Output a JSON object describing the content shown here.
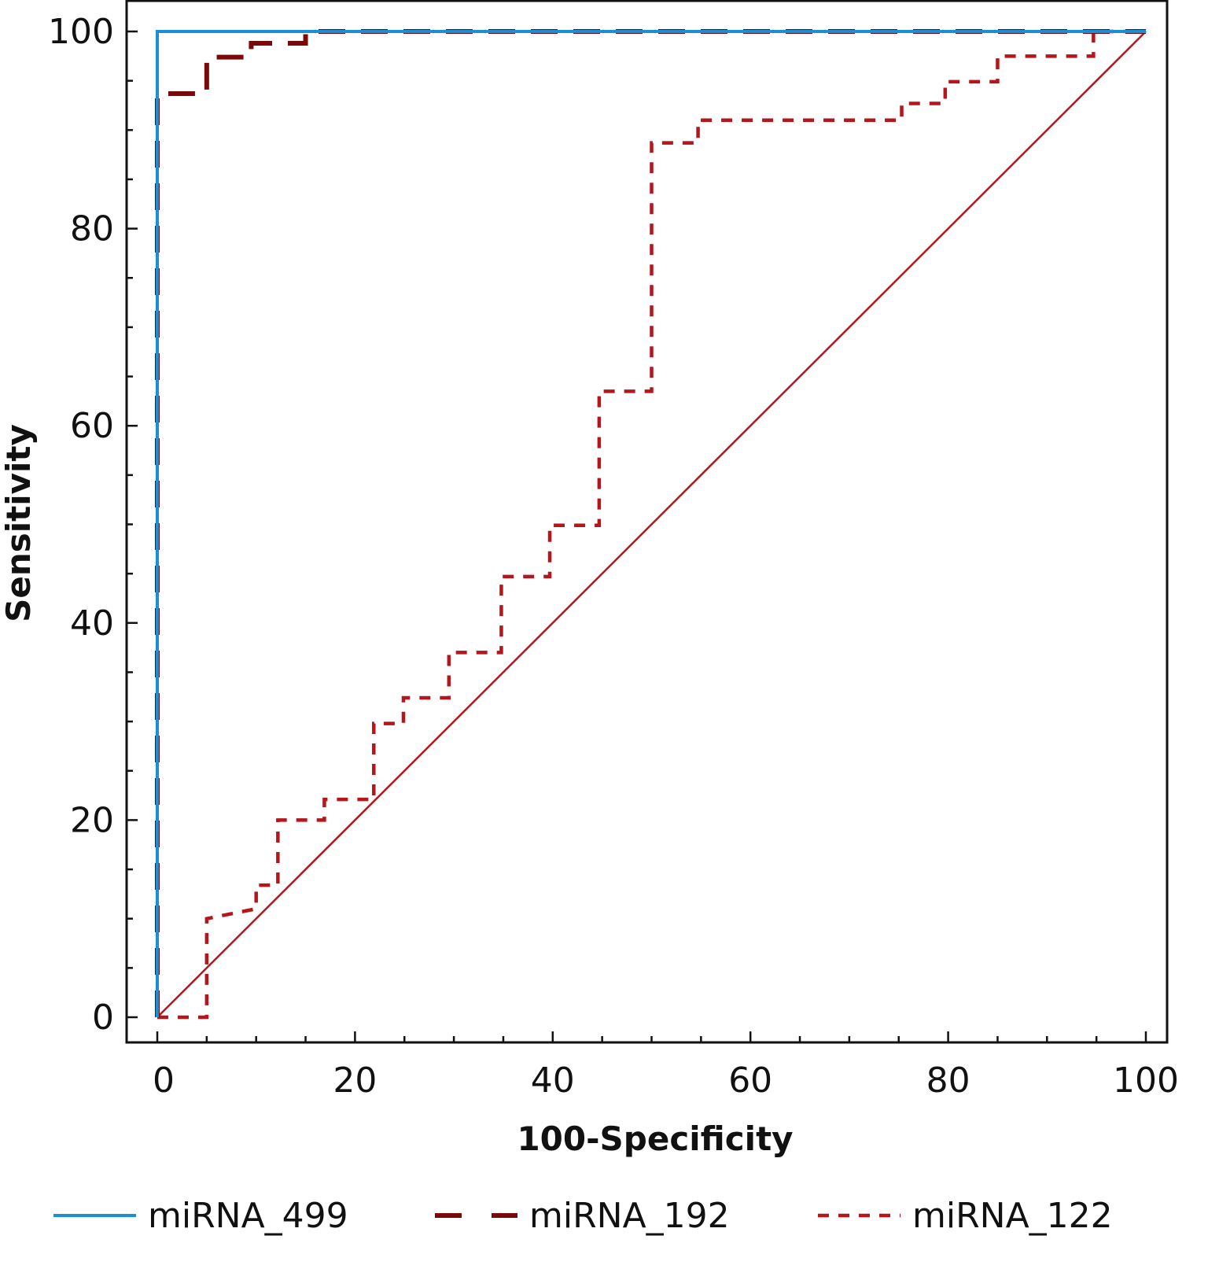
{
  "chart_data": {
    "type": "line",
    "title": "",
    "xlabel": "100-Specificity",
    "ylabel": "Sensitivity",
    "xlim": [
      0,
      100
    ],
    "ylim": [
      0,
      100
    ],
    "xticks": [
      0,
      20,
      40,
      60,
      80,
      100
    ],
    "yticks": [
      0,
      20,
      40,
      60,
      80,
      100
    ],
    "grid": false,
    "legend_position": "bottom",
    "series": [
      {
        "name": "miRNA_499",
        "color": "#1a8fd6",
        "style": "solid",
        "x": [
          0,
          0,
          100
        ],
        "y": [
          0,
          100,
          100
        ]
      },
      {
        "name": "miRNA_192",
        "color": "#7a0a0a",
        "style": "long-dash",
        "x": [
          0,
          0,
          5,
          5,
          9.5,
          9.5,
          15,
          15,
          100
        ],
        "y": [
          0,
          93.7,
          93.7,
          97.4,
          97.4,
          98.8,
          98.8,
          100,
          100
        ]
      },
      {
        "name": "miRNA_122",
        "color": "#b5161b",
        "style": "short-dash",
        "x": [
          0,
          5,
          5,
          10,
          10,
          12.2,
          12.2,
          16.9,
          16.9,
          21.9,
          21.9,
          24.9,
          24.9,
          29.5,
          29.5,
          34.8,
          34.8,
          39.7,
          39.7,
          44.7,
          44.7,
          50,
          50,
          54.7,
          54.7,
          75.3,
          75.3,
          79.7,
          79.7,
          85,
          85,
          94.7,
          94.7,
          100
        ],
        "y": [
          0,
          0,
          10,
          11,
          13.4,
          13.4,
          20,
          20,
          22.1,
          22.1,
          29.8,
          29.8,
          32.4,
          32.4,
          37,
          37,
          44.7,
          44.7,
          49.9,
          49.9,
          63.5,
          63.5,
          88.7,
          88.7,
          91,
          91,
          92.7,
          92.7,
          94.9,
          94.9,
          97.5,
          97.5,
          100,
          100
        ]
      }
    ],
    "reference_line": {
      "x": [
        0,
        100
      ],
      "y": [
        0,
        100
      ],
      "color": "#b5161b"
    }
  }
}
